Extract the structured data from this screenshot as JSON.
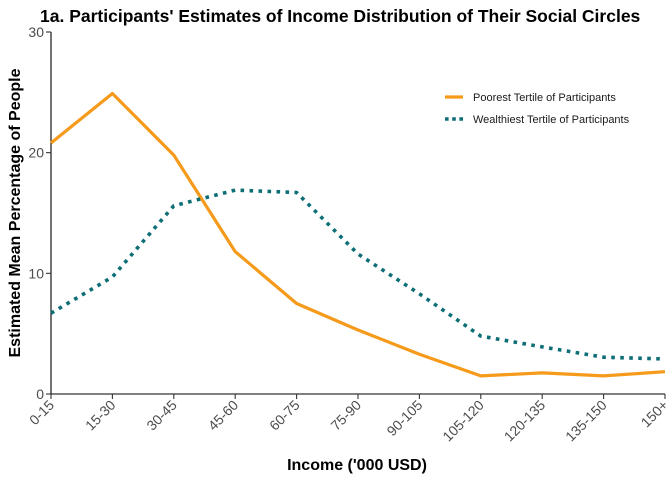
{
  "chart_data": {
    "type": "line",
    "title": "1a. Participants' Estimates of Income Distribution of Their Social Circles",
    "xlabel": "Income ('000 USD)",
    "ylabel": "Estimated Mean Percentage of People",
    "categories": [
      "0-15",
      "15-30",
      "30-45",
      "45-60",
      "60-75",
      "75-90",
      "90-105",
      "105-120",
      "120-135",
      "135-150",
      "150+"
    ],
    "ylim": [
      0,
      30
    ],
    "yticks": [
      0,
      10,
      20,
      30
    ],
    "grid": false,
    "legend_position": "top-right",
    "series": [
      {
        "name": "Poorest Tertile of Participants",
        "values": [
          20.8,
          24.9,
          19.8,
          11.8,
          7.5,
          5.3,
          3.3,
          1.5,
          1.75,
          1.5,
          1.85
        ],
        "color": "#F59A1B",
        "style": "solid"
      },
      {
        "name": "Wealthiest Tertile of Participants",
        "values": [
          6.7,
          9.7,
          15.6,
          16.9,
          16.7,
          11.6,
          8.3,
          4.8,
          3.9,
          3.05,
          2.9
        ],
        "color": "#0E6E76",
        "style": "dotted"
      }
    ]
  }
}
